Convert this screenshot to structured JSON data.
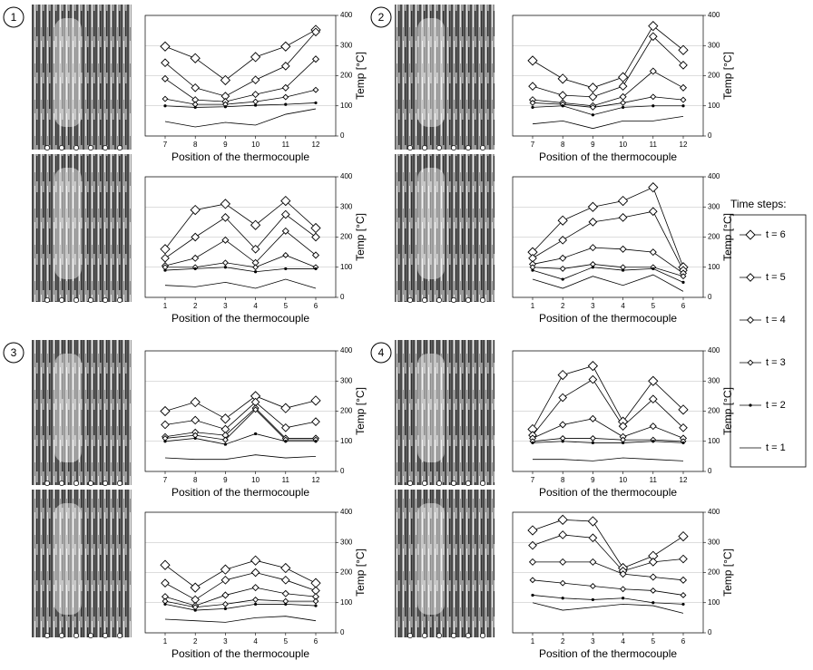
{
  "panel_labels": [
    "1",
    "2",
    "3",
    "4"
  ],
  "legend": {
    "title": "Time steps:",
    "entries": [
      "t = 6",
      "t = 5",
      "t = 4",
      "t = 3",
      "t = 2",
      "t = 1"
    ]
  },
  "chart_data": [
    {
      "type": "line",
      "xlabel": "Position of the thermocouple",
      "ylabel": "Temp [°C]",
      "categories": [
        "7",
        "8",
        "9",
        "10",
        "11",
        "12"
      ],
      "ylim": [
        0,
        400
      ],
      "yticks": [
        0,
        100,
        200,
        300,
        400
      ],
      "grid": true,
      "series": [
        {
          "color": "#000",
          "values": [
            297,
            258,
            185,
            262,
            297,
            352
          ]
        },
        {
          "color": "#000",
          "values": [
            243,
            160,
            132,
            186,
            232,
            345
          ]
        },
        {
          "color": "#000",
          "values": [
            190,
            120,
            114,
            138,
            160,
            255
          ]
        },
        {
          "color": "#000",
          "values": [
            123,
            105,
            105,
            114,
            129,
            153
          ]
        },
        {
          "color": "#000",
          "values": [
            100,
            95,
            97,
            102,
            105,
            110
          ]
        },
        {
          "color": "#000",
          "values": [
            48,
            30,
            45,
            36,
            72,
            90
          ]
        }
      ]
    },
    {
      "type": "line",
      "xlabel": "Position of the thermocouple",
      "ylabel": "Temp [°C]",
      "categories": [
        "1",
        "2",
        "3",
        "4",
        "5",
        "6"
      ],
      "ylim": [
        0,
        400
      ],
      "yticks": [
        0,
        100,
        200,
        300,
        400
      ],
      "grid": true,
      "series": [
        {
          "color": "#000",
          "values": [
            160,
            290,
            310,
            240,
            320,
            230
          ]
        },
        {
          "color": "#000",
          "values": [
            130,
            200,
            265,
            160,
            275,
            200
          ]
        },
        {
          "color": "#000",
          "values": [
            105,
            130,
            190,
            115,
            220,
            140
          ]
        },
        {
          "color": "#000",
          "values": [
            100,
            100,
            115,
            100,
            140,
            100
          ]
        },
        {
          "color": "#000",
          "values": [
            90,
            95,
            100,
            85,
            95,
            95
          ]
        },
        {
          "color": "#000",
          "values": [
            40,
            35,
            50,
            30,
            60,
            30
          ]
        }
      ]
    },
    {
      "type": "line",
      "xlabel": "Position of the thermocouple",
      "ylabel": "Temp [°C]",
      "categories": [
        "7",
        "8",
        "9",
        "10",
        "11",
        "12"
      ],
      "ylim": [
        0,
        400
      ],
      "yticks": [
        0,
        100,
        200,
        300,
        400
      ],
      "grid": true,
      "series": [
        {
          "color": "#000",
          "values": [
            250,
            190,
            160,
            195,
            365,
            285
          ]
        },
        {
          "color": "#000",
          "values": [
            165,
            135,
            130,
            165,
            330,
            235
          ]
        },
        {
          "color": "#000",
          "values": [
            120,
            110,
            100,
            130,
            215,
            160
          ]
        },
        {
          "color": "#000",
          "values": [
            110,
            105,
            95,
            110,
            130,
            120
          ]
        },
        {
          "color": "#000",
          "values": [
            95,
            100,
            70,
            95,
            100,
            100
          ]
        },
        {
          "color": "#000",
          "values": [
            40,
            50,
            25,
            50,
            50,
            65
          ]
        }
      ]
    },
    {
      "type": "line",
      "xlabel": "Position of the thermocouple",
      "ylabel": "Temp [°C]",
      "categories": [
        "1",
        "2",
        "3",
        "4",
        "5",
        "6"
      ],
      "ylim": [
        0,
        400
      ],
      "yticks": [
        0,
        100,
        200,
        300,
        400
      ],
      "grid": true,
      "series": [
        {
          "color": "#000",
          "values": [
            150,
            255,
            300,
            320,
            365,
            100
          ]
        },
        {
          "color": "#000",
          "values": [
            130,
            190,
            250,
            265,
            285,
            90
          ]
        },
        {
          "color": "#000",
          "values": [
            110,
            130,
            165,
            160,
            150,
            80
          ]
        },
        {
          "color": "#000",
          "values": [
            100,
            95,
            110,
            100,
            100,
            70
          ]
        },
        {
          "color": "#000",
          "values": [
            90,
            60,
            100,
            90,
            95,
            50
          ]
        },
        {
          "color": "#000",
          "values": [
            60,
            30,
            70,
            40,
            75,
            20
          ]
        }
      ]
    },
    {
      "type": "line",
      "xlabel": "Position of the thermocouple",
      "ylabel": "Temp [°C]",
      "categories": [
        "7",
        "8",
        "9",
        "10",
        "11",
        "12"
      ],
      "ylim": [
        0,
        400
      ],
      "yticks": [
        0,
        100,
        200,
        300,
        400
      ],
      "grid": true,
      "series": [
        {
          "color": "#000",
          "values": [
            200,
            230,
            175,
            250,
            210,
            235
          ]
        },
        {
          "color": "#000",
          "values": [
            155,
            170,
            140,
            230,
            145,
            165
          ]
        },
        {
          "color": "#000",
          "values": [
            115,
            130,
            120,
            210,
            110,
            110
          ]
        },
        {
          "color": "#000",
          "values": [
            110,
            120,
            105,
            205,
            105,
            105
          ]
        },
        {
          "color": "#000",
          "values": [
            100,
            110,
            90,
            125,
            100,
            100
          ]
        },
        {
          "color": "#000",
          "values": [
            45,
            40,
            40,
            55,
            45,
            50
          ]
        }
      ]
    },
    {
      "type": "line",
      "xlabel": "Position of the thermocouple",
      "ylabel": "Temp [°C]",
      "categories": [
        "1",
        "2",
        "3",
        "4",
        "5",
        "6"
      ],
      "ylim": [
        0,
        400
      ],
      "yticks": [
        0,
        100,
        200,
        300,
        400
      ],
      "grid": true,
      "series": [
        {
          "color": "#000",
          "values": [
            225,
            150,
            210,
            240,
            215,
            165
          ]
        },
        {
          "color": "#000",
          "values": [
            165,
            110,
            175,
            200,
            175,
            140
          ]
        },
        {
          "color": "#000",
          "values": [
            120,
            90,
            125,
            150,
            130,
            120
          ]
        },
        {
          "color": "#000",
          "values": [
            105,
            85,
            95,
            110,
            105,
            105
          ]
        },
        {
          "color": "#000",
          "values": [
            95,
            75,
            80,
            95,
            95,
            90
          ]
        },
        {
          "color": "#000",
          "values": [
            45,
            40,
            35,
            50,
            55,
            40
          ]
        }
      ]
    },
    {
      "type": "line",
      "xlabel": "Position of the thermocouple",
      "ylabel": "Temp [°C]",
      "categories": [
        "7",
        "8",
        "9",
        "10",
        "11",
        "12"
      ],
      "ylim": [
        0,
        400
      ],
      "yticks": [
        0,
        100,
        200,
        300,
        400
      ],
      "grid": true,
      "series": [
        {
          "color": "#000",
          "values": [
            140,
            320,
            350,
            165,
            300,
            205
          ]
        },
        {
          "color": "#000",
          "values": [
            120,
            245,
            305,
            150,
            240,
            145
          ]
        },
        {
          "color": "#000",
          "values": [
            110,
            155,
            175,
            115,
            150,
            110
          ]
        },
        {
          "color": "#000",
          "values": [
            100,
            110,
            110,
            105,
            105,
            100
          ]
        },
        {
          "color": "#000",
          "values": [
            95,
            100,
            95,
            95,
            100,
            95
          ]
        },
        {
          "color": "#000",
          "values": [
            40,
            40,
            35,
            45,
            40,
            35
          ]
        }
      ]
    },
    {
      "type": "line",
      "xlabel": "Position of the thermocouple",
      "ylabel": "Temp [°C]",
      "categories": [
        "1",
        "2",
        "3",
        "4",
        "5",
        "6"
      ],
      "ylim": [
        0,
        400
      ],
      "yticks": [
        0,
        100,
        200,
        300,
        400
      ],
      "grid": true,
      "series": [
        {
          "color": "#000",
          "values": [
            340,
            375,
            370,
            215,
            255,
            320
          ]
        },
        {
          "color": "#000",
          "values": [
            290,
            325,
            315,
            205,
            235,
            245
          ]
        },
        {
          "color": "#000",
          "values": [
            235,
            235,
            235,
            195,
            185,
            175
          ]
        },
        {
          "color": "#000",
          "values": [
            175,
            165,
            155,
            145,
            140,
            125
          ]
        },
        {
          "color": "#000",
          "values": [
            125,
            115,
            110,
            115,
            100,
            95
          ]
        },
        {
          "color": "#000",
          "values": [
            100,
            75,
            85,
            95,
            90,
            65
          ]
        }
      ]
    }
  ]
}
